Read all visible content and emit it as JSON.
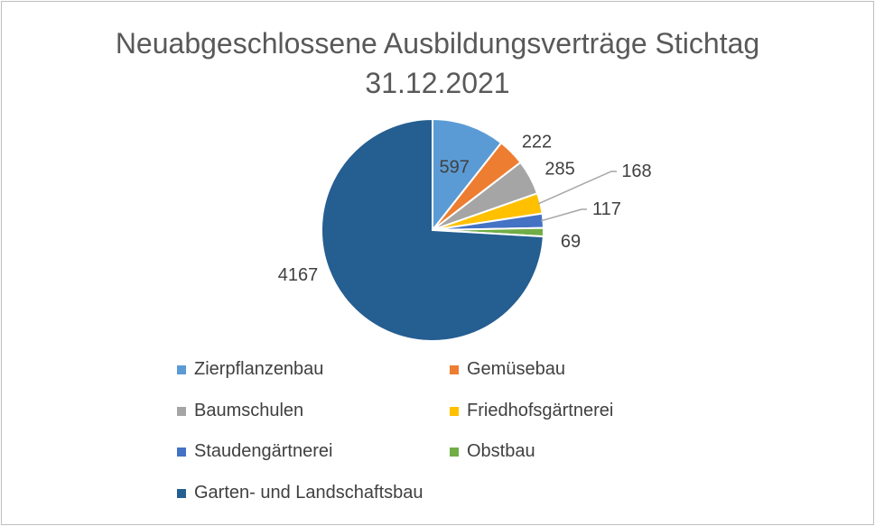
{
  "chart_data": {
    "type": "pie",
    "title_line1": "Neuabgeschlossene  Ausbildungsverträge Stichtag",
    "title_line2": "31.12.2021",
    "slices": [
      {
        "name": "Zierpflanzenbau",
        "value": 597,
        "label": "597",
        "color": "#5b9bd5"
      },
      {
        "name": "Gemüsebau",
        "value": 222,
        "label": "222",
        "color": "#ed7d31"
      },
      {
        "name": "Baumschulen",
        "value": 285,
        "label": "285",
        "color": "#a5a5a5"
      },
      {
        "name": "Friedhofsgärtnerei",
        "value": 168,
        "label": "168",
        "color": "#ffc000"
      },
      {
        "name": "Staudengärtnerei",
        "value": 117,
        "label": "117",
        "color": "#4472c4"
      },
      {
        "name": "Obstbau",
        "value": 69,
        "label": "69",
        "color": "#70ad47"
      },
      {
        "name": "Garten- und Landschaftsbau",
        "value": 4167,
        "label": "4167",
        "color": "#255e91"
      }
    ],
    "legend_placement": "bottom"
  }
}
